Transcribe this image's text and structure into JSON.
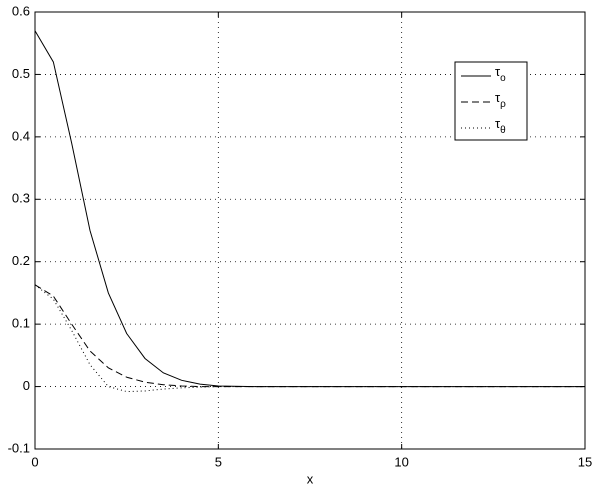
{
  "chart_data": {
    "type": "line",
    "xlabel": "x",
    "x": [
      0,
      0.5,
      1,
      1.5,
      2,
      2.5,
      3,
      3.5,
      4,
      4.5,
      5,
      6,
      8,
      10,
      12,
      15
    ],
    "series": [
      {
        "name": "τo",
        "color": "#000000",
        "style": "solid",
        "values": [
          0.57,
          0.52,
          0.39,
          0.25,
          0.15,
          0.085,
          0.045,
          0.022,
          0.01,
          0.004,
          0.001,
          0,
          0,
          0,
          0,
          0
        ]
      },
      {
        "name": "τρ",
        "color": "#000000",
        "style": "dashed",
        "values": [
          0.163,
          0.145,
          0.1,
          0.057,
          0.03,
          0.015,
          0.007,
          0.003,
          0.001,
          0,
          0,
          0,
          0,
          0,
          0,
          0
        ]
      },
      {
        "name": "τθ",
        "color": "#000000",
        "style": "dotted",
        "values": [
          0.163,
          0.14,
          0.09,
          0.035,
          0.0,
          -0.008,
          -0.007,
          -0.004,
          -0.002,
          -0.001,
          0,
          0,
          0,
          0,
          0,
          0
        ]
      }
    ],
    "xlim": [
      0,
      15
    ],
    "xticks": [
      0,
      5,
      10,
      15
    ],
    "ylim": [
      -0.1,
      0.6
    ],
    "yticks": [
      -0.1,
      0,
      0.1,
      0.2,
      0.3,
      0.4,
      0.5,
      0.6
    ],
    "grid": true
  }
}
